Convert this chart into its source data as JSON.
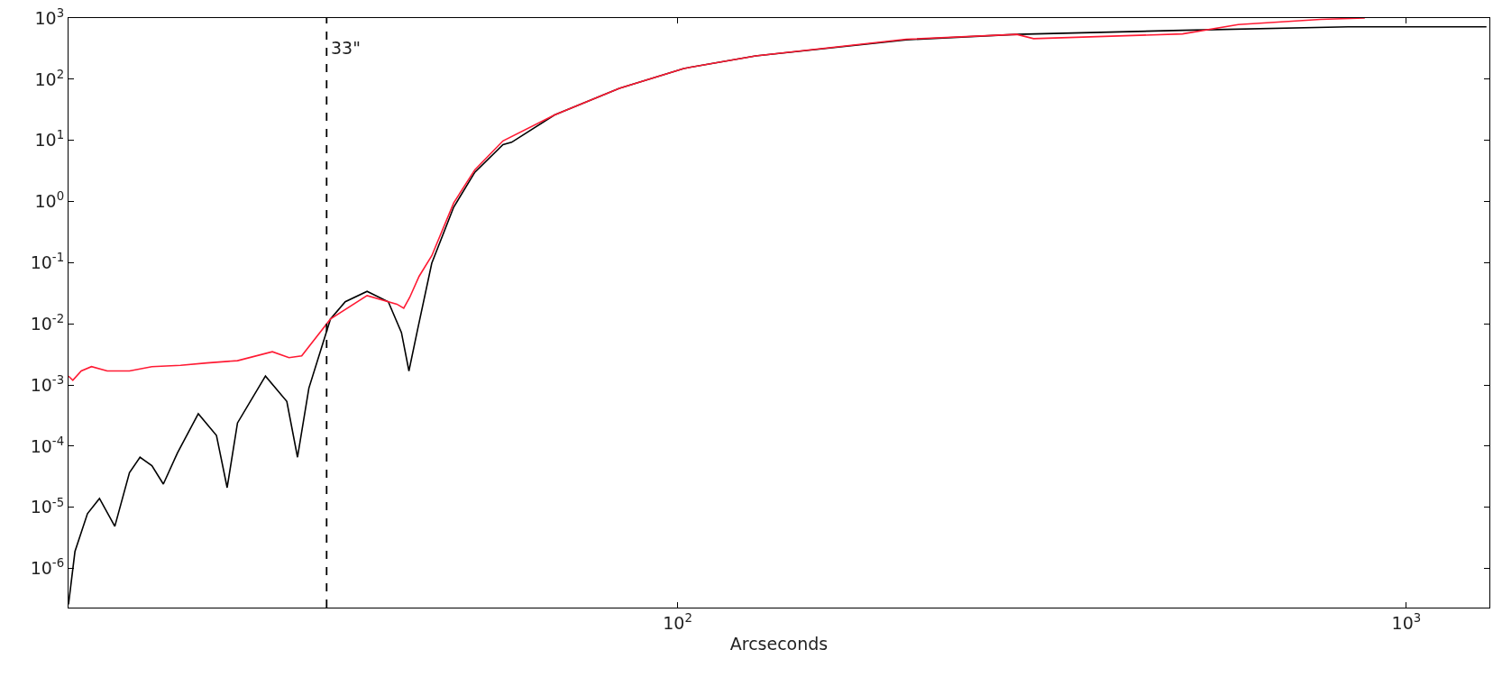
{
  "chart_data": {
    "type": "line",
    "xlabel": "Arcseconds",
    "log": "xy",
    "marker": "none",
    "line_style": "solid",
    "xlim": [
      14.6,
      1300
    ],
    "ylim": [
      2.3e-07,
      1000
    ],
    "xticks": [
      {
        "value": 100,
        "label": "10$^{2}$"
      },
      {
        "value": 1000,
        "label": "10$^{3}$"
      }
    ],
    "yticks": [
      {
        "value": 1e-06,
        "label": "10$^{-6}$"
      },
      {
        "value": 1e-05,
        "label": "10$^{-5}$"
      },
      {
        "value": 0.0001,
        "label": "10$^{-4}$"
      },
      {
        "value": 0.001,
        "label": "10$^{-3}$"
      },
      {
        "value": 0.01,
        "label": "10$^{-2}$"
      },
      {
        "value": 0.1,
        "label": "10$^{-1}$"
      },
      {
        "value": 1,
        "label": "10$^{0}$"
      },
      {
        "value": 10,
        "label": "10$^{1}$"
      },
      {
        "value": 100,
        "label": "10$^{2}$"
      },
      {
        "value": 1000,
        "label": "10$^{3}$"
      }
    ],
    "series": [
      {
        "color": "#000000",
        "x": [
          14.6,
          14.9,
          15.5,
          16.1,
          16.9,
          17.7,
          18.3,
          19.0,
          19.7,
          20.6,
          22.0,
          23.3,
          24.1,
          24.9,
          27.2,
          29.1,
          30.1,
          31.2,
          33.4,
          35.0,
          37.5,
          40.1,
          41.8,
          42.8,
          43.9,
          46.0,
          49.3,
          52.7,
          57.6,
          59.2,
          67.8,
          83.2,
          102,
          128,
          206,
          292,
          493,
          832,
          1288
        ],
        "values": [
          2.6e-07,
          1.9e-06,
          7.9e-06,
          1.4e-05,
          4.9e-06,
          3.7e-05,
          6.6e-05,
          4.8e-05,
          2.4e-05,
          7.8e-05,
          0.00034,
          0.00015,
          2.1e-05,
          0.00024,
          0.0014,
          0.00054,
          6.6e-05,
          0.00089,
          0.012,
          0.023,
          0.034,
          0.023,
          0.0072,
          0.0017,
          0.0072,
          0.098,
          0.81,
          3.0,
          8.5,
          9.3,
          26,
          71,
          150,
          240,
          440,
          540,
          630,
          720,
          720
        ]
      },
      {
        "color": "#ff1a33",
        "x": [
          14.6,
          14.8,
          15.2,
          15.7,
          16.5,
          17.7,
          19.0,
          20.8,
          22.6,
          24.9,
          27.8,
          29.3,
          30.5,
          33.4,
          37.5,
          41.2,
          42.1,
          42.9,
          44.2,
          46.0,
          49.3,
          52.7,
          57.6,
          67.8,
          83.2,
          102,
          128,
          206,
          292,
          308,
          493,
          588,
          763,
          877
        ],
        "values": [
          0.0014,
          0.0012,
          0.0017,
          0.002,
          0.0017,
          0.0017,
          0.002,
          0.0021,
          0.0023,
          0.0025,
          0.0035,
          0.0028,
          0.003,
          0.012,
          0.029,
          0.021,
          0.018,
          0.027,
          0.06,
          0.13,
          0.95,
          3.3,
          9.8,
          26,
          71,
          150,
          240,
          450,
          540,
          460,
          550,
          780,
          950,
          1000
        ]
      }
    ],
    "ref_lines": [
      {
        "axis": "x",
        "value": 33,
        "label": "33\"",
        "color": "#000000",
        "line_style": "dashed"
      }
    ]
  }
}
